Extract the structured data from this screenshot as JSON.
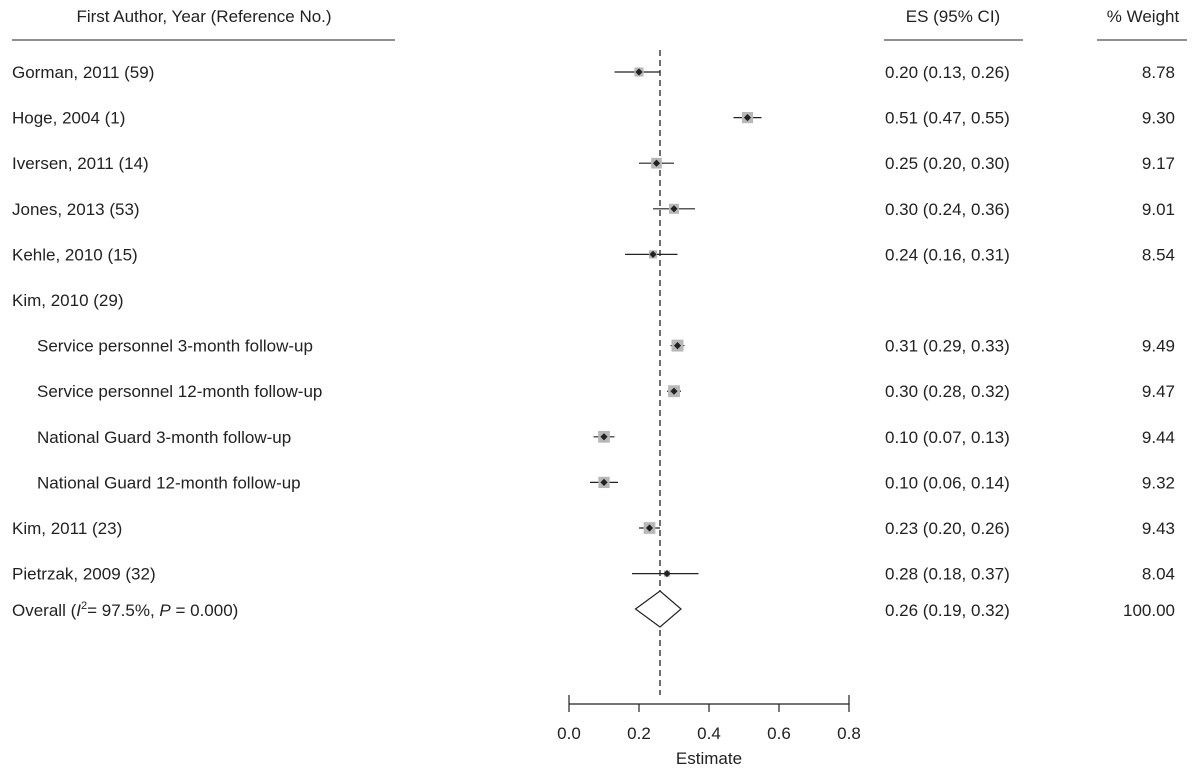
{
  "headers": {
    "study": "First Author, Year (Reference No.)",
    "es": "ES (95% CI)",
    "weight": "% Weight"
  },
  "chart_data": {
    "type": "forest",
    "xlabel": "Estimate",
    "xlim": [
      0.0,
      0.8
    ],
    "xticks": [
      "0.0",
      "0.2",
      "0.4",
      "0.6",
      "0.8"
    ],
    "null_line": 0.26,
    "rows": [
      {
        "label": "Gorman, 2011 (59)",
        "indent": false,
        "est": 0.2,
        "lo": 0.13,
        "hi": 0.26,
        "es_text": "0.20 (0.13, 0.26)",
        "weight": "8.78"
      },
      {
        "label": "Hoge, 2004 (1)",
        "indent": false,
        "est": 0.51,
        "lo": 0.47,
        "hi": 0.55,
        "es_text": "0.51 (0.47, 0.55)",
        "weight": "9.30"
      },
      {
        "label": "Iversen, 2011 (14)",
        "indent": false,
        "est": 0.25,
        "lo": 0.2,
        "hi": 0.3,
        "es_text": "0.25 (0.20, 0.30)",
        "weight": "9.17"
      },
      {
        "label": "Jones, 2013 (53)",
        "indent": false,
        "est": 0.3,
        "lo": 0.24,
        "hi": 0.36,
        "es_text": "0.30 (0.24, 0.36)",
        "weight": "9.01"
      },
      {
        "label": "Kehle, 2010 (15)",
        "indent": false,
        "est": 0.24,
        "lo": 0.16,
        "hi": 0.31,
        "es_text": "0.24 (0.16, 0.31)",
        "weight": "8.54"
      },
      {
        "label": "Kim, 2010 (29)",
        "indent": false,
        "header_only": true
      },
      {
        "label": "Service personnel 3-month follow-up",
        "indent": true,
        "est": 0.31,
        "lo": 0.29,
        "hi": 0.33,
        "es_text": "0.31 (0.29, 0.33)",
        "weight": "9.49"
      },
      {
        "label": "Service personnel 12-month follow-up",
        "indent": true,
        "est": 0.3,
        "lo": 0.28,
        "hi": 0.32,
        "es_text": "0.30 (0.28, 0.32)",
        "weight": "9.47"
      },
      {
        "label": "National Guard 3-month follow-up",
        "indent": true,
        "est": 0.1,
        "lo": 0.07,
        "hi": 0.13,
        "es_text": "0.10 (0.07, 0.13)",
        "weight": "9.44"
      },
      {
        "label": "National Guard 12-month follow-up",
        "indent": true,
        "est": 0.1,
        "lo": 0.06,
        "hi": 0.14,
        "es_text": "0.10 (0.06, 0.14)",
        "weight": "9.32"
      },
      {
        "label": "Kim, 2011 (23)",
        "indent": false,
        "est": 0.23,
        "lo": 0.2,
        "hi": 0.26,
        "es_text": "0.23 (0.20, 0.26)",
        "weight": "9.43"
      },
      {
        "label": "Pietrzak, 2009 (32)",
        "indent": false,
        "est": 0.28,
        "lo": 0.18,
        "hi": 0.37,
        "es_text": "0.28 (0.18, 0.37)",
        "weight": "8.04"
      }
    ],
    "overall": {
      "label_prefix": "Overall (",
      "i2_symbol": "I",
      "i2_sup": "2",
      "i2_rest": "= 97.5%, ",
      "p_symbol": "P",
      "p_rest": " = 0.000)",
      "est": 0.26,
      "lo": 0.19,
      "hi": 0.32,
      "es_text": "0.26 (0.19, 0.32)",
      "weight": "100.00"
    }
  }
}
